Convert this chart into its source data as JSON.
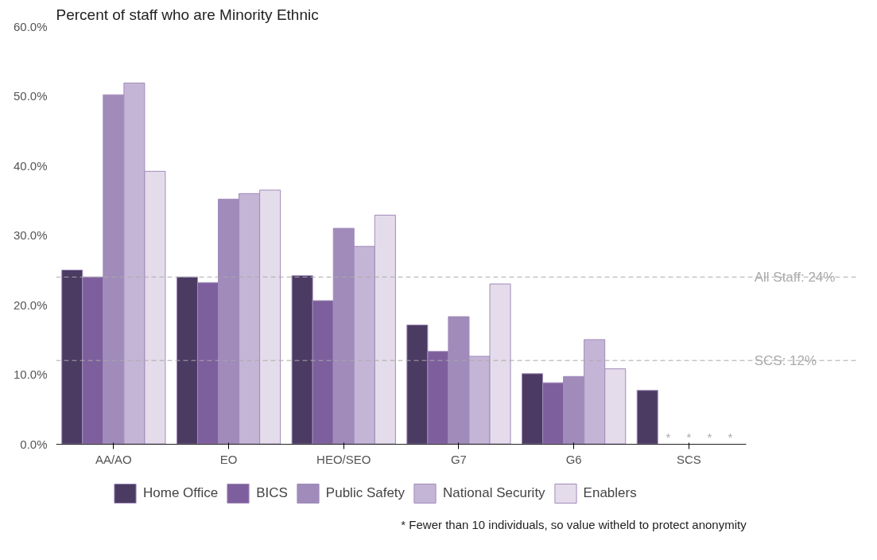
{
  "chart_data": {
    "type": "bar",
    "title": "Percent of staff who are Minority Ethnic",
    "categories": [
      "AA/AO",
      "EO",
      "HEO/SEO",
      "G7",
      "G6",
      "SCS"
    ],
    "series": [
      {
        "name": "Home Office",
        "color": "#4b3a62",
        "values": [
          25.0,
          24.0,
          24.2,
          17.1,
          10.1,
          7.7
        ]
      },
      {
        "name": "BICS",
        "color": "#7e5f9d",
        "values": [
          24.0,
          23.2,
          20.6,
          13.3,
          8.8,
          null
        ],
        "value_labels": [
          null,
          null,
          null,
          null,
          null,
          "*"
        ]
      },
      {
        "name": "Public Safety",
        "color": "#a08bba",
        "values": [
          50.2,
          35.2,
          31.0,
          18.3,
          9.7,
          null
        ],
        "value_labels": [
          null,
          null,
          null,
          null,
          null,
          "*"
        ]
      },
      {
        "name": "National Security",
        "color": "#c4b5d6",
        "values": [
          51.9,
          36.0,
          28.4,
          12.6,
          15.0,
          null
        ],
        "value_labels": [
          null,
          null,
          null,
          null,
          null,
          "*"
        ]
      },
      {
        "name": "Enablers",
        "color": "#e4dcea",
        "values": [
          39.2,
          36.5,
          32.9,
          23.0,
          10.8,
          null
        ],
        "value_labels": [
          null,
          null,
          null,
          null,
          null,
          "*"
        ]
      }
    ],
    "ylim": [
      0,
      60
    ],
    "yticks": [
      {
        "value": 0,
        "label": "0.0%"
      },
      {
        "value": 10,
        "label": "10.0%"
      },
      {
        "value": 20,
        "label": "20.0%"
      },
      {
        "value": 30,
        "label": "30.0%"
      },
      {
        "value": 40,
        "label": "40.0%"
      },
      {
        "value": 50,
        "label": "50.0%"
      },
      {
        "value": 60,
        "label": "60.0%"
      }
    ],
    "ref_lines": [
      {
        "axis": "y",
        "value": 24,
        "label": "All Staff: 24%",
        "color": "#aaaaaa",
        "line_style": "dashed"
      },
      {
        "axis": "y",
        "value": 12,
        "label": "SCS: 12%",
        "color": "#aaaaaa",
        "line_style": "dashed"
      }
    ],
    "grid": false,
    "legend": "bottom",
    "annotations": [
      "* Fewer than 10 individuals, so value witheld to protect anonymity"
    ]
  }
}
